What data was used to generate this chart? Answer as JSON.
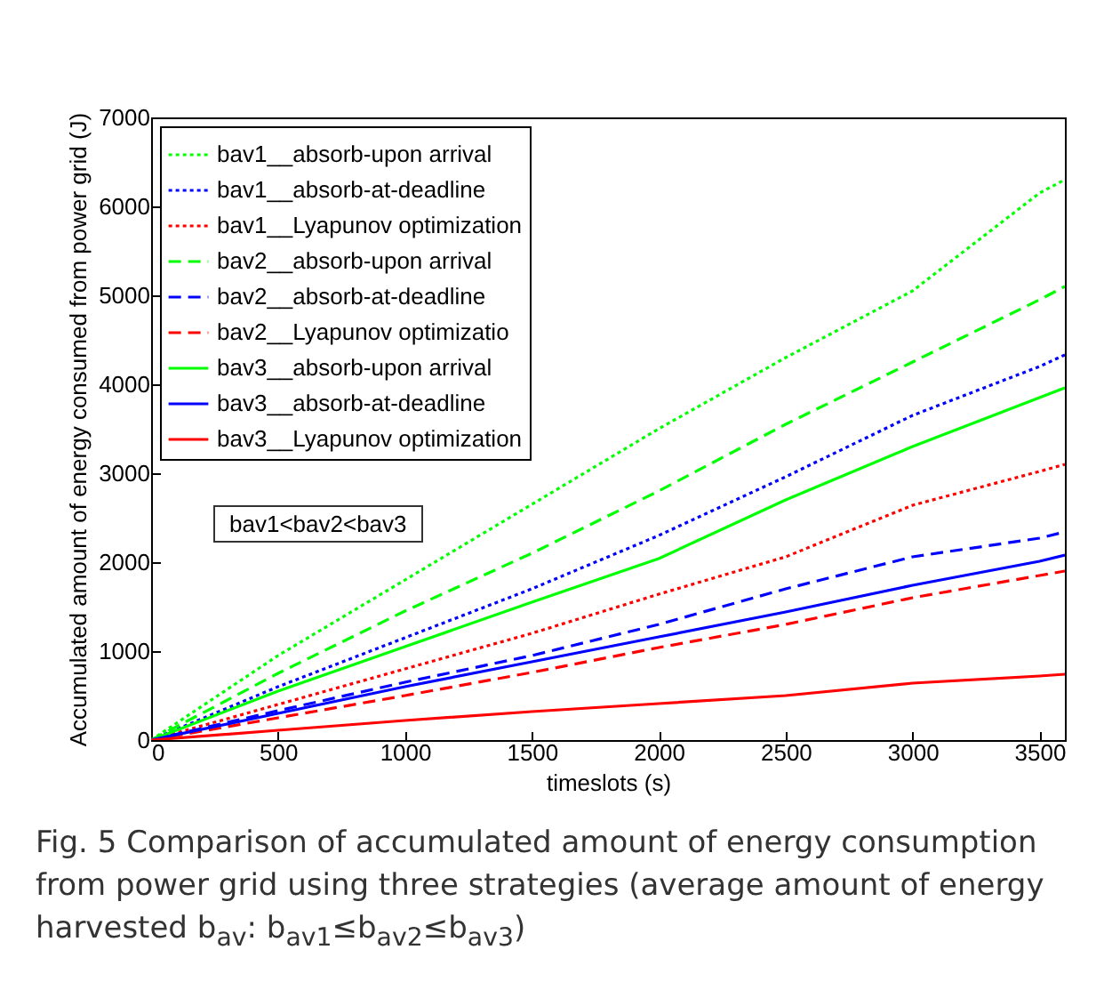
{
  "chart_data": {
    "type": "line",
    "xlabel": "timeslots (s)",
    "ylabel": "Accumulated amount of energy consumed from power grid (J)",
    "x": [
      0,
      500,
      1000,
      1500,
      2000,
      2500,
      3000,
      3500,
      3600
    ],
    "xlim": [
      0,
      3600
    ],
    "xticks": [
      0,
      500,
      1000,
      1500,
      2000,
      2500,
      3000,
      3500
    ],
    "ylim": [
      0,
      7000
    ],
    "yticks": [
      0,
      1000,
      2000,
      3000,
      4000,
      5000,
      6000,
      7000
    ],
    "grid": false,
    "legend": "top left",
    "series": [
      {
        "name": "bav1__absorb-upon arrival",
        "color": "#00ff00",
        "line_style": "dotted",
        "values": [
          0,
          950,
          1800,
          2650,
          3500,
          4300,
          5050,
          6150,
          6300
        ]
      },
      {
        "name": "bav1__absorb-at-deadline",
        "color": "#0000ff",
        "line_style": "dotted",
        "values": [
          0,
          600,
          1150,
          1700,
          2300,
          2960,
          3650,
          4200,
          4330
        ]
      },
      {
        "name": "bav1__Lyapunov optimization",
        "color": "#ff0000",
        "line_style": "dotted",
        "values": [
          0,
          400,
          800,
          1200,
          1640,
          2060,
          2640,
          3020,
          3100
        ]
      },
      {
        "name": "bav2__absorb-upon arrival",
        "color": "#00ff00",
        "line_style": "dashed",
        "values": [
          0,
          750,
          1450,
          2100,
          2800,
          3550,
          4250,
          4950,
          5100
        ]
      },
      {
        "name": "bav2__absorb-at-deadline",
        "color": "#0000ff",
        "line_style": "dashed",
        "values": [
          0,
          330,
          650,
          950,
          1300,
          1700,
          2060,
          2270,
          2340
        ]
      },
      {
        "name": "bav2__Lyapunov optimizatio",
        "color": "#ff0000",
        "line_style": "dashed",
        "values": [
          0,
          250,
          500,
          760,
          1040,
          1300,
          1600,
          1850,
          1900
        ]
      },
      {
        "name": "bav3__absorb-upon arrival",
        "color": "#00ff00",
        "line_style": "solid",
        "values": [
          0,
          550,
          1050,
          1550,
          2040,
          2700,
          3300,
          3850,
          3960
        ]
      },
      {
        "name": "bav3__absorb-at-deadline",
        "color": "#0000ff",
        "line_style": "solid",
        "values": [
          0,
          300,
          600,
          880,
          1160,
          1440,
          1740,
          2010,
          2080
        ]
      },
      {
        "name": "bav3__Lyapunov optimization",
        "color": "#ff0000",
        "line_style": "solid",
        "values": [
          0,
          110,
          220,
          320,
          410,
          500,
          640,
          720,
          740
        ]
      }
    ],
    "annotations": [
      "bav1<bav2<bav3",
      "Fig. 5 Comparison of accumulated amount of energy consumption from power grid using three strategies (average amount of energy harvested $_{}$b$_{av}$: b$_{av1}$≤b$_{av2}$≤b$_{av3}$)"
    ]
  }
}
